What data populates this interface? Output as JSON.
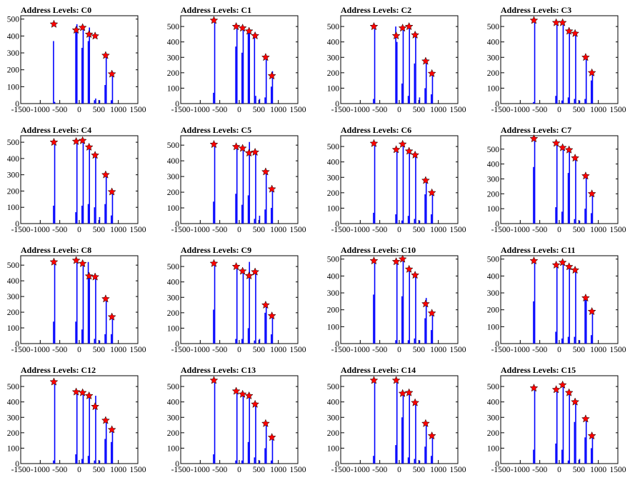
{
  "chart_data": [
    {
      "type": "bar",
      "title": "Address Levels: C0",
      "xlim": [
        -1500,
        1500
      ],
      "ylim": [
        0,
        520
      ],
      "xticks": [
        -1500,
        -1000,
        -500,
        0,
        500,
        1000,
        1500
      ],
      "yticks": [
        0,
        100,
        200,
        300,
        400,
        500
      ],
      "bars": {
        "x": [
          -660,
          -630,
          -90,
          -60,
          70,
          100,
          230,
          260,
          390,
          420,
          520,
          660,
          690,
          820,
          850
        ],
        "y": [
          370,
          10,
          450,
          470,
          330,
          460,
          370,
          450,
          20,
          30,
          20,
          110,
          280,
          20,
          190
        ]
      },
      "markers": {
        "x": [
          -650,
          -80,
          85,
          250,
          405,
          675,
          835
        ],
        "y": [
          470,
          435,
          450,
          410,
          400,
          285,
          175
        ]
      }
    },
    {
      "type": "bar",
      "title": "Address Levels: C1",
      "xlim": [
        -1500,
        1500
      ],
      "ylim": [
        0,
        570
      ],
      "xticks": [
        -1500,
        -1000,
        -500,
        0,
        500,
        1000,
        1500
      ],
      "yticks": [
        0,
        100,
        200,
        300,
        400,
        500
      ],
      "bars": {
        "x": [
          -660,
          -630,
          -90,
          -60,
          70,
          100,
          230,
          260,
          390,
          420,
          520,
          660,
          690,
          820,
          850
        ],
        "y": [
          70,
          540,
          370,
          500,
          330,
          490,
          460,
          460,
          440,
          50,
          30,
          40,
          290,
          110,
          210
        ]
      },
      "markers": {
        "x": [
          -650,
          -80,
          85,
          250,
          405,
          675,
          835
        ],
        "y": [
          540,
          500,
          490,
          470,
          440,
          300,
          180
        ]
      }
    },
    {
      "type": "bar",
      "title": "Address Levels: C2",
      "xlim": [
        -1500,
        1500
      ],
      "ylim": [
        0,
        570
      ],
      "xticks": [
        -1500,
        -1000,
        -500,
        0,
        500,
        1000,
        1500
      ],
      "yticks": [
        0,
        100,
        200,
        300,
        400,
        500
      ],
      "bars": {
        "x": [
          -660,
          -630,
          -90,
          -60,
          70,
          100,
          230,
          260,
          390,
          420,
          520,
          660,
          690,
          820,
          850
        ],
        "y": [
          30,
          510,
          500,
          400,
          130,
          490,
          50,
          500,
          260,
          460,
          40,
          100,
          290,
          60,
          200
        ]
      },
      "markers": {
        "x": [
          -650,
          -80,
          85,
          250,
          405,
          675,
          835
        ],
        "y": [
          500,
          440,
          490,
          500,
          445,
          275,
          195
        ]
      }
    },
    {
      "type": "bar",
      "title": "Address Levels: C3",
      "xlim": [
        -1500,
        1500
      ],
      "ylim": [
        0,
        570
      ],
      "xticks": [
        -1500,
        -1000,
        -500,
        0,
        500,
        1000,
        1500
      ],
      "yticks": [
        0,
        100,
        200,
        300,
        400,
        500
      ],
      "bars": {
        "x": [
          -660,
          -630,
          -90,
          -60,
          70,
          100,
          230,
          260,
          390,
          420,
          520,
          660,
          690,
          820,
          850
        ],
        "y": [
          10,
          540,
          50,
          530,
          20,
          510,
          40,
          480,
          30,
          460,
          20,
          30,
          300,
          150,
          200
        ]
      },
      "markers": {
        "x": [
          -650,
          -80,
          85,
          250,
          405,
          675,
          835
        ],
        "y": [
          540,
          525,
          525,
          470,
          455,
          300,
          200
        ]
      }
    },
    {
      "type": "bar",
      "title": "Address Levels: C4",
      "xlim": [
        -1500,
        1500
      ],
      "ylim": [
        0,
        540
      ],
      "xticks": [
        -1500,
        -1000,
        -500,
        0,
        500,
        1000,
        1500
      ],
      "yticks": [
        0,
        100,
        200,
        300,
        400,
        500
      ],
      "bars": {
        "x": [
          -660,
          -630,
          -90,
          -60,
          70,
          100,
          230,
          260,
          390,
          420,
          520,
          660,
          690,
          820,
          850
        ],
        "y": [
          110,
          500,
          70,
          500,
          110,
          510,
          120,
          470,
          100,
          430,
          40,
          120,
          300,
          50,
          200
        ]
      },
      "markers": {
        "x": [
          -650,
          -80,
          85,
          250,
          405,
          675,
          835
        ],
        "y": [
          500,
          505,
          510,
          470,
          420,
          300,
          195
        ]
      }
    },
    {
      "type": "bar",
      "title": "Address Levels: C5",
      "xlim": [
        -1500,
        1500
      ],
      "ylim": [
        0,
        560
      ],
      "xticks": [
        -1500,
        -1000,
        -500,
        0,
        500,
        1000,
        1500
      ],
      "yticks": [
        0,
        100,
        200,
        300,
        400,
        500
      ],
      "bars": {
        "x": [
          -660,
          -630,
          -90,
          -60,
          70,
          100,
          230,
          260,
          390,
          420,
          520,
          660,
          690,
          820,
          850
        ],
        "y": [
          140,
          510,
          190,
          500,
          120,
          480,
          180,
          520,
          30,
          460,
          50,
          90,
          330,
          100,
          220
        ]
      },
      "markers": {
        "x": [
          -650,
          -80,
          85,
          250,
          405,
          675,
          835
        ],
        "y": [
          505,
          490,
          480,
          450,
          455,
          330,
          220
        ]
      }
    },
    {
      "type": "bar",
      "title": "Address Levels: C6",
      "xlim": [
        -1500,
        1500
      ],
      "ylim": [
        0,
        570
      ],
      "xticks": [
        -1500,
        -1000,
        -500,
        0,
        500,
        1000,
        1500
      ],
      "yticks": [
        0,
        100,
        200,
        300,
        400,
        500
      ],
      "bars": {
        "x": [
          -660,
          -630,
          -90,
          -60,
          70,
          100,
          230,
          260,
          390,
          420,
          520,
          660,
          690,
          820,
          850
        ],
        "y": [
          70,
          520,
          60,
          490,
          20,
          510,
          50,
          470,
          30,
          450,
          20,
          190,
          280,
          60,
          200
        ]
      },
      "markers": {
        "x": [
          -650,
          -80,
          85,
          250,
          405,
          675,
          835
        ],
        "y": [
          520,
          480,
          515,
          470,
          445,
          280,
          200
        ]
      }
    },
    {
      "type": "bar",
      "title": "Address Levels: C7",
      "xlim": [
        -1500,
        1500
      ],
      "ylim": [
        0,
        590
      ],
      "xticks": [
        -1500,
        -1000,
        -500,
        0,
        500,
        1000,
        1500
      ],
      "yticks": [
        0,
        100,
        200,
        300,
        400,
        500
      ],
      "bars": {
        "x": [
          -660,
          -630,
          -90,
          -60,
          70,
          100,
          230,
          260,
          390,
          420,
          520,
          660,
          690,
          820,
          850
        ],
        "y": [
          380,
          570,
          110,
          540,
          80,
          510,
          340,
          500,
          30,
          440,
          20,
          100,
          320,
          70,
          200
        ]
      },
      "markers": {
        "x": [
          -650,
          -80,
          85,
          250,
          405,
          675,
          835
        ],
        "y": [
          570,
          540,
          510,
          495,
          440,
          320,
          200
        ]
      }
    },
    {
      "type": "bar",
      "title": "Address Levels: C8",
      "xlim": [
        -1500,
        1500
      ],
      "ylim": [
        0,
        560
      ],
      "xticks": [
        -1500,
        -1000,
        -500,
        0,
        500,
        1000,
        1500
      ],
      "yticks": [
        0,
        100,
        200,
        300,
        400,
        500
      ],
      "bars": {
        "x": [
          -660,
          -630,
          -90,
          -60,
          70,
          100,
          230,
          260,
          390,
          420,
          520,
          660,
          690,
          820,
          850
        ],
        "y": [
          140,
          520,
          140,
          530,
          90,
          510,
          520,
          430,
          30,
          420,
          20,
          60,
          290,
          60,
          170
        ]
      },
      "markers": {
        "x": [
          -650,
          -80,
          85,
          250,
          405,
          675,
          835
        ],
        "y": [
          520,
          530,
          510,
          430,
          425,
          285,
          170
        ]
      }
    },
    {
      "type": "bar",
      "title": "Address Levels: C9",
      "xlim": [
        -1500,
        1500
      ],
      "ylim": [
        0,
        570
      ],
      "xticks": [
        -1500,
        -1000,
        -500,
        0,
        500,
        1000,
        1500
      ],
      "yticks": [
        0,
        100,
        200,
        300,
        400,
        500
      ],
      "bars": {
        "x": [
          -660,
          -630,
          -90,
          -60,
          70,
          100,
          230,
          260,
          390,
          420,
          520,
          660,
          690,
          820,
          850
        ],
        "y": [
          220,
          520,
          30,
          500,
          30,
          470,
          100,
          530,
          20,
          470,
          30,
          200,
          250,
          60,
          180
        ]
      },
      "markers": {
        "x": [
          -650,
          -80,
          85,
          250,
          405,
          675,
          835
        ],
        "y": [
          520,
          500,
          470,
          440,
          465,
          250,
          180
        ]
      }
    },
    {
      "type": "bar",
      "title": "Address Levels: C10",
      "xlim": [
        -1500,
        1500
      ],
      "ylim": [
        0,
        520
      ],
      "xticks": [
        -1500,
        -1000,
        -500,
        0,
        500,
        1000,
        1500
      ],
      "yticks": [
        0,
        100,
        200,
        300,
        400,
        500
      ],
      "bars": {
        "x": [
          -660,
          -630,
          -90,
          -60,
          70,
          100,
          230,
          260,
          390,
          420,
          520,
          660,
          690,
          820,
          850
        ],
        "y": [
          290,
          490,
          20,
          490,
          280,
          500,
          20,
          440,
          30,
          400,
          20,
          150,
          270,
          80,
          180
        ]
      },
      "markers": {
        "x": [
          -650,
          -80,
          85,
          250,
          405,
          675,
          835
        ],
        "y": [
          490,
          485,
          500,
          440,
          405,
          235,
          180
        ]
      }
    },
    {
      "type": "bar",
      "title": "Address Levels: C11",
      "xlim": [
        -1500,
        1500
      ],
      "ylim": [
        0,
        520
      ],
      "xticks": [
        -1500,
        -1000,
        -500,
        0,
        500,
        1000,
        1500
      ],
      "yticks": [
        0,
        100,
        200,
        300,
        400,
        500
      ],
      "bars": {
        "x": [
          -660,
          -630,
          -90,
          -60,
          70,
          100,
          230,
          260,
          390,
          420,
          520,
          660,
          690,
          820,
          850
        ],
        "y": [
          250,
          490,
          70,
          460,
          30,
          480,
          40,
          450,
          40,
          430,
          20,
          270,
          260,
          50,
          190
        ]
      },
      "markers": {
        "x": [
          -650,
          -80,
          85,
          250,
          405,
          675,
          835
        ],
        "y": [
          490,
          465,
          480,
          455,
          435,
          270,
          190
        ]
      }
    },
    {
      "type": "bar",
      "title": "Address Levels: C12",
      "xlim": [
        -1500,
        1500
      ],
      "ylim": [
        0,
        570
      ],
      "xticks": [
        -1500,
        -1000,
        -500,
        0,
        500,
        1000,
        1500
      ],
      "yticks": [
        0,
        100,
        200,
        300,
        400,
        500
      ],
      "bars": {
        "x": [
          -660,
          -630,
          -90,
          -60,
          70,
          100,
          230,
          260,
          390,
          420,
          520,
          660,
          690,
          820,
          850
        ],
        "y": [
          20,
          530,
          60,
          470,
          30,
          460,
          50,
          440,
          20,
          440,
          20,
          160,
          290,
          140,
          220
        ]
      },
      "markers": {
        "x": [
          -650,
          -80,
          85,
          250,
          405,
          675,
          835
        ],
        "y": [
          530,
          465,
          460,
          440,
          370,
          280,
          220
        ]
      }
    },
    {
      "type": "bar",
      "title": "Address Levels: C13",
      "xlim": [
        -1500,
        1500
      ],
      "ylim": [
        0,
        570
      ],
      "xticks": [
        -1500,
        -1000,
        -500,
        0,
        500,
        1000,
        1500
      ],
      "yticks": [
        0,
        100,
        200,
        300,
        400,
        500
      ],
      "bars": {
        "x": [
          -660,
          -630,
          -90,
          -60,
          70,
          100,
          230,
          260,
          390,
          420,
          520,
          660,
          690,
          820,
          850
        ],
        "y": [
          60,
          540,
          20,
          470,
          20,
          450,
          140,
          440,
          40,
          380,
          20,
          100,
          260,
          20,
          170
        ]
      },
      "markers": {
        "x": [
          -650,
          -80,
          85,
          250,
          405,
          675,
          835
        ],
        "y": [
          540,
          470,
          450,
          440,
          385,
          260,
          170
        ]
      }
    },
    {
      "type": "bar",
      "title": "Address Levels: C14",
      "xlim": [
        -1500,
        1500
      ],
      "ylim": [
        0,
        570
      ],
      "xticks": [
        -1500,
        -1000,
        -500,
        0,
        500,
        1000,
        1500
      ],
      "yticks": [
        0,
        100,
        200,
        300,
        400,
        500
      ],
      "bars": {
        "x": [
          -660,
          -630,
          -90,
          -60,
          70,
          100,
          230,
          260,
          390,
          420,
          520,
          660,
          690,
          820,
          850
        ],
        "y": [
          50,
          540,
          120,
          540,
          300,
          450,
          40,
          460,
          30,
          390,
          20,
          110,
          260,
          50,
          180
        ]
      },
      "markers": {
        "x": [
          -650,
          -80,
          85,
          250,
          405,
          675,
          835
        ],
        "y": [
          540,
          540,
          455,
          460,
          395,
          260,
          180
        ]
      }
    },
    {
      "type": "bar",
      "title": "Address Levels: C15",
      "xlim": [
        -1500,
        1500
      ],
      "ylim": [
        0,
        570
      ],
      "xticks": [
        -1500,
        -1000,
        -500,
        0,
        500,
        1000,
        1500
      ],
      "yticks": [
        0,
        100,
        200,
        300,
        400,
        500
      ],
      "bars": {
        "x": [
          -660,
          -630,
          -90,
          -60,
          70,
          100,
          230,
          260,
          390,
          420,
          520,
          660,
          690,
          820,
          850
        ],
        "y": [
          90,
          490,
          130,
          480,
          90,
          510,
          20,
          460,
          270,
          400,
          30,
          170,
          290,
          100,
          180
        ]
      },
      "markers": {
        "x": [
          -650,
          -80,
          85,
          250,
          405,
          675,
          835
        ],
        "y": [
          490,
          480,
          510,
          460,
          400,
          290,
          180
        ]
      }
    }
  ],
  "colors": {
    "bar": "#0000ff",
    "marker": "#ff0000",
    "frame": "#000000",
    "text": "#000000"
  },
  "marker_shape": "star"
}
